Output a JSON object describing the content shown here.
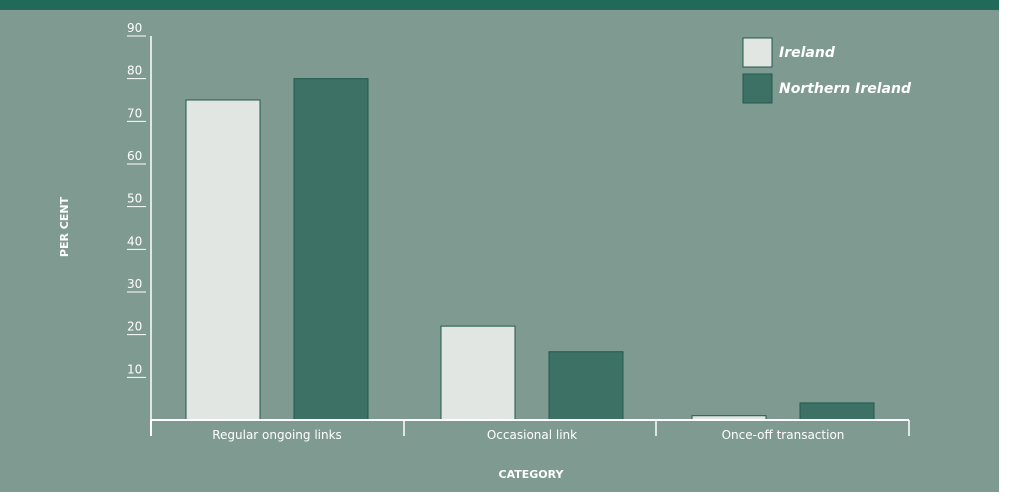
{
  "colors": {
    "background": "#7f9a90",
    "top_band": "#22695a",
    "ireland_fill": "#e1e6e2",
    "northern_ireland_fill": "#3d7166",
    "bar_stroke": "#1f5a4c",
    "axis": "#ffffff",
    "text": "#ffffff"
  },
  "chart_data": {
    "type": "bar",
    "categories": [
      "Regular ongoing links",
      "Occasional link",
      "Once-off transaction"
    ],
    "series": [
      {
        "name": "Ireland",
        "values": [
          75,
          22,
          1
        ],
        "color": "#e1e6e2"
      },
      {
        "name": "Northern Ireland",
        "values": [
          80,
          16,
          4
        ],
        "color": "#3d7166"
      }
    ],
    "xlabel": "CATEGORY",
    "ylabel": "PER CENT",
    "ylim": [
      0,
      90
    ],
    "yticks": [
      10,
      20,
      30,
      40,
      50,
      60,
      70,
      80,
      90
    ],
    "grid": false,
    "legend_position": "top-right"
  }
}
